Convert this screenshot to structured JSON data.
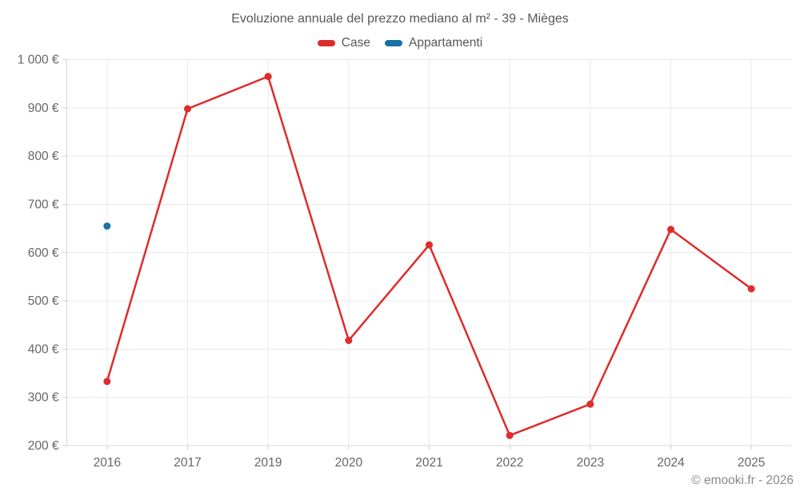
{
  "title": "Evoluzione annuale del prezzo mediano al m² - 39 - Mièges",
  "watermark": "© emooki.fr - 2026",
  "legend": {
    "items": [
      {
        "label": "Case",
        "color": "#dd2c2c"
      },
      {
        "label": "Appartamenti",
        "color": "#1a70a8"
      }
    ]
  },
  "chart_data": {
    "type": "line",
    "title": "Evoluzione annuale del prezzo mediano al m² - 39 - Mièges",
    "categories": [
      "2016",
      "2017",
      "2019",
      "2020",
      "2021",
      "2022",
      "2023",
      "2024",
      "2025"
    ],
    "series": [
      {
        "name": "Case",
        "color": "#dd2c2c",
        "values": [
          333,
          898,
          965,
          418,
          616,
          221,
          286,
          648,
          525
        ]
      },
      {
        "name": "Appartamenti",
        "color": "#1a70a8",
        "values": [
          655,
          null,
          null,
          null,
          null,
          null,
          null,
          null,
          null
        ]
      }
    ],
    "xlabel": "",
    "ylabel": "",
    "ylim": [
      200,
      1000
    ],
    "ytick_step": 100,
    "yticks": [
      "200 €",
      "300 €",
      "400 €",
      "500 €",
      "600 €",
      "700 €",
      "800 €",
      "900 €",
      "1 000 €"
    ],
    "grid": true,
    "legend_position": "top",
    "colors": {
      "grid": "#e9e9e9",
      "axis": "#d9d9d9",
      "tick": "#cccccc",
      "label": "#666666",
      "title": "#575757",
      "watermark": "#8a8a8a",
      "background": "#ffffff"
    }
  }
}
